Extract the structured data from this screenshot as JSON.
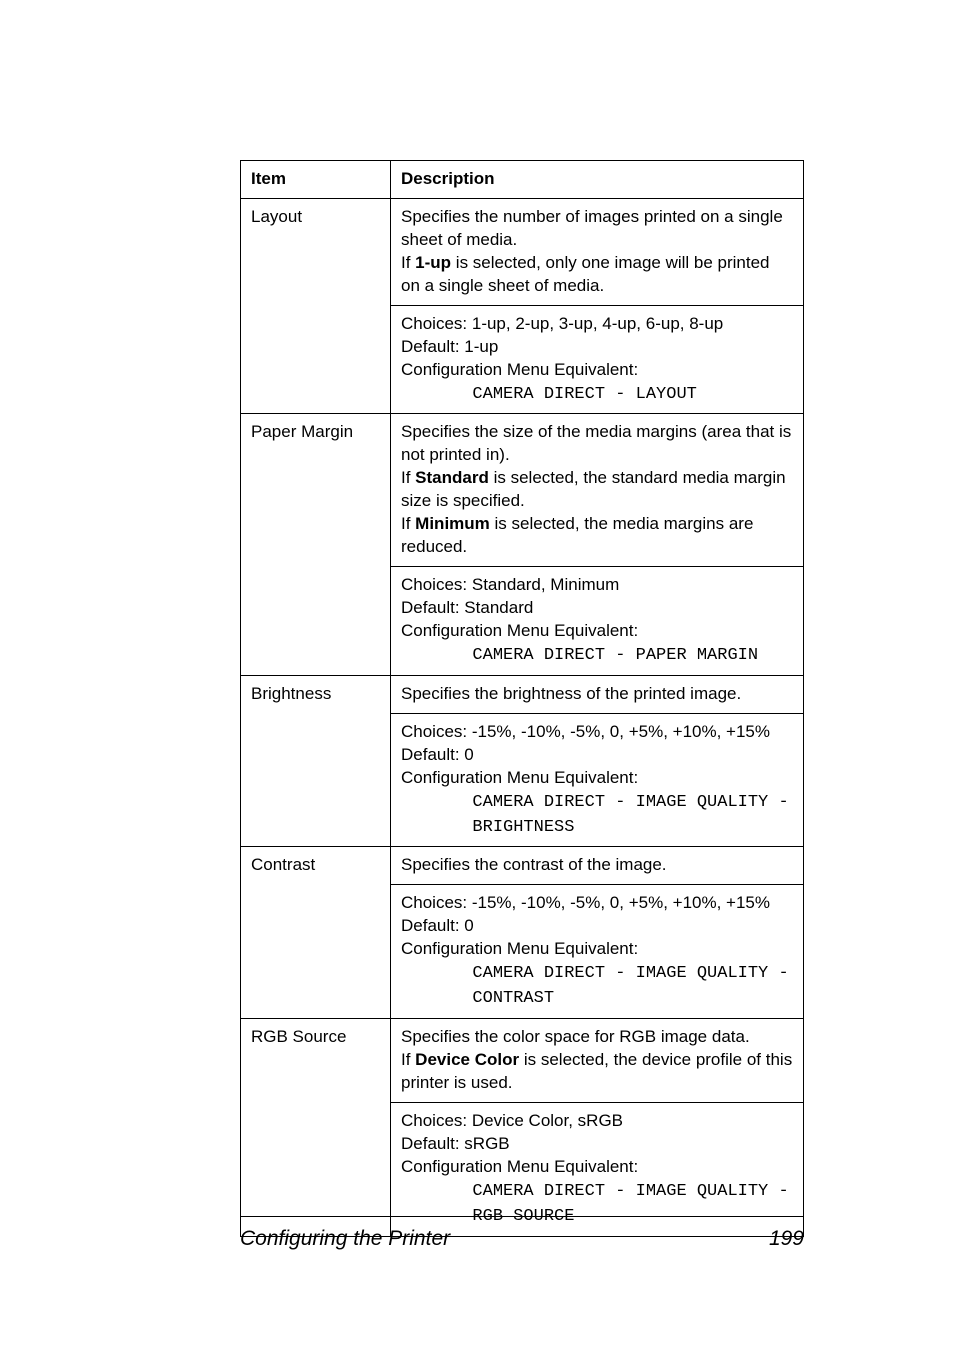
{
  "table": {
    "header": {
      "item": "Item",
      "description": "Description"
    },
    "rows": [
      {
        "item": "Layout",
        "main": {
          "line1": "Specifies the number of images printed on a single sheet of media.",
          "line2a": "If ",
          "bold1": "1-up",
          "line2b": " is selected, only one image will be printed on a single sheet of media."
        },
        "sub": {
          "choices": "Choices: 1-up, 2-up, 3-up, 4-up, 6-up, 8-up",
          "default": "Default:  1-up",
          "cfg": "Configuration Menu Equivalent:",
          "mono": "       CAMERA DIRECT - LAYOUT"
        }
      },
      {
        "item": "Paper Margin",
        "main": {
          "line1": "Specifies the size of the media margins (area that is not printed in).",
          "line2a": "If ",
          "bold1": "Standard",
          "line2b": " is selected, the standard media margin size is specified.",
          "line3a": "If ",
          "bold2": "Minimum",
          "line3b": " is selected, the media margins are reduced."
        },
        "sub": {
          "choices": "Choices: Standard, Minimum",
          "default": "Default:  Standard",
          "cfg": "Configuration Menu Equivalent:",
          "mono": "       CAMERA DIRECT - PAPER MARGIN"
        }
      },
      {
        "item": "Brightness",
        "main": {
          "line1": "Specifies the brightness of the printed image."
        },
        "sub": {
          "choices": "Choices: -15%, -10%, -5%, 0, +5%, +10%, +15%",
          "default": "Default:  0",
          "cfg": "Configuration Menu Equivalent:",
          "mono": "       CAMERA DIRECT - IMAGE QUALITY -\n       BRIGHTNESS"
        }
      },
      {
        "item": "Contrast",
        "main": {
          "line1": "Specifies the contrast of the image."
        },
        "sub": {
          "choices": "Choices: -15%, -10%, -5%, 0, +5%, +10%, +15%",
          "default": "Default:  0",
          "cfg": "Configuration Menu Equivalent:",
          "mono": "       CAMERA DIRECT - IMAGE QUALITY -\n       CONTRAST"
        }
      },
      {
        "item": "RGB Source",
        "main": {
          "line1": "Specifies the color space for RGB image data.",
          "line2a": "If ",
          "bold1": "Device Color",
          "line2b": " is selected, the device profile of this printer is used."
        },
        "sub": {
          "choices": "Choices: Device Color, sRGB",
          "default": "Default:  sRGB",
          "cfg": "Configuration Menu Equivalent:",
          "mono": "       CAMERA DIRECT - IMAGE QUALITY -\n       RGB SOURCE"
        }
      }
    ]
  },
  "footer": {
    "title": "Configuring the Printer",
    "page": "199"
  }
}
